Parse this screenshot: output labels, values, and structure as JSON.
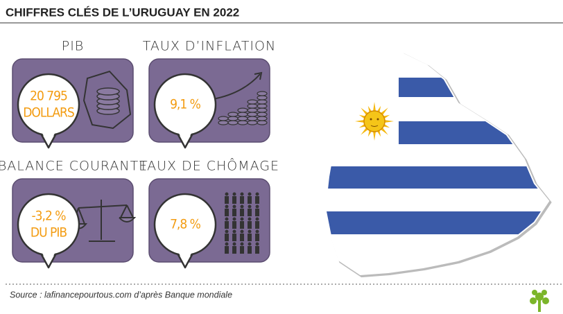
{
  "header": {
    "title": "CHIFFRES CLÉS DE L’URUGUAY EN 2022"
  },
  "cards": [
    {
      "label": "PIB",
      "value_lines": [
        "20 795",
        "DOLLARS"
      ]
    },
    {
      "label": "TAUX D’INFLATION",
      "value_lines": [
        "9,1 %"
      ]
    },
    {
      "label": "BALANCE COURANTE",
      "value_lines": [
        "-3,2 %",
        "DU PIB"
      ]
    },
    {
      "label": "TAUX DE CHÔMAGE",
      "value_lines": [
        "7,8 %"
      ]
    }
  ],
  "footer": {
    "source": "Source : lafinancepourtous.com d’après Banque mondiale"
  }
}
